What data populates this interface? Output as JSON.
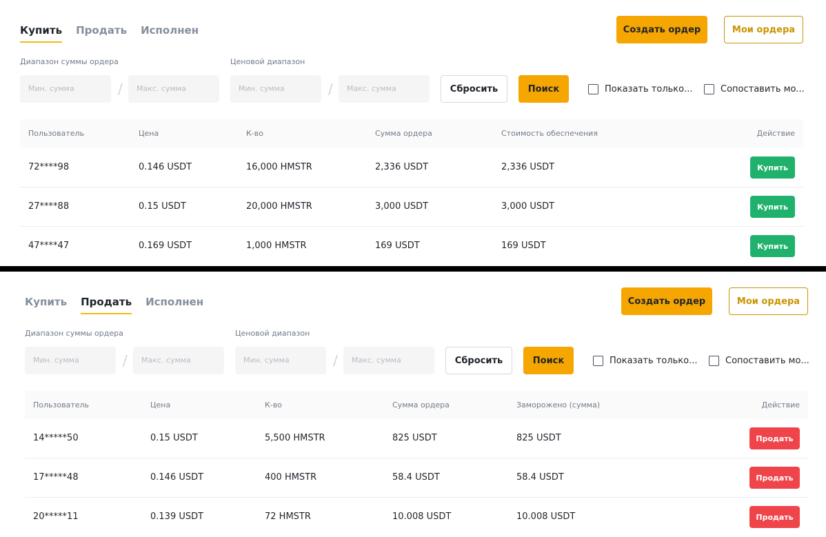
{
  "buy_panel": {
    "tabs": [
      {
        "label": "Купить",
        "active": true
      },
      {
        "label": "Продать",
        "active": false
      },
      {
        "label": "Исполнен",
        "active": false
      }
    ],
    "create_order_label": "Создать ордер",
    "my_orders_label": "Мои ордера",
    "amount_range_label": "Диапазон суммы ордера",
    "price_range_label": "Ценовой диапазон",
    "amount_min_placeholder": "Мин. сумма",
    "amount_max_placeholder": "Макс. сумма",
    "price_min_placeholder": "Мин. сумма",
    "price_max_placeholder": "Макс. сумма",
    "separator": "/",
    "reset_label": "Сбросить",
    "search_label": "Поиск",
    "checkbox_show_only": "Показать только...",
    "checkbox_match": "Сопоставить мо...",
    "columns": [
      "Пользователь",
      "Цена",
      "К-во",
      "Сумма ордера",
      "Стоимость обеспечения",
      "Действие"
    ],
    "rows": [
      {
        "user": "72****98",
        "price": "0.146 USDT",
        "qty": "16,000 HMSTR",
        "amount": "2,336 USDT",
        "collateral": "2,336 USDT",
        "action": "Купить"
      },
      {
        "user": "27****88",
        "price": "0.15 USDT",
        "qty": "20,000 HMSTR",
        "amount": "3,000 USDT",
        "collateral": "3,000 USDT",
        "action": "Купить"
      },
      {
        "user": "47****47",
        "price": "0.169 USDT",
        "qty": "1,000 HMSTR",
        "amount": "169 USDT",
        "collateral": "169 USDT",
        "action": "Купить"
      }
    ],
    "action_color": "#20b26c"
  },
  "sell_panel": {
    "tabs": [
      {
        "label": "Купить",
        "active": false
      },
      {
        "label": "Продать",
        "active": true
      },
      {
        "label": "Исполнен",
        "active": false
      }
    ],
    "create_order_label": "Создать ордер",
    "my_orders_label": "Мои ордера",
    "amount_range_label": "Диапазон суммы ордера",
    "price_range_label": "Ценовой диапазон",
    "amount_min_placeholder": "Мин. сумма",
    "amount_max_placeholder": "Макс. сумма",
    "price_min_placeholder": "Мин. сумма",
    "price_max_placeholder": "Макс. сумма",
    "separator": "/",
    "reset_label": "Сбросить",
    "search_label": "Поиск",
    "checkbox_show_only": "Показать только...",
    "checkbox_match": "Сопоставить мо...",
    "columns": [
      "Пользователь",
      "Цена",
      "К-во",
      "Сумма ордера",
      "Заморожено (сумма)",
      "Действие"
    ],
    "rows": [
      {
        "user": "14*****50",
        "price": "0.15 USDT",
        "qty": "5,500 HMSTR",
        "amount": "825 USDT",
        "collateral": "825 USDT",
        "action": "Продать"
      },
      {
        "user": "17*****48",
        "price": "0.146 USDT",
        "qty": "400 HMSTR",
        "amount": "58.4 USDT",
        "collateral": "58.4 USDT",
        "action": "Продать"
      },
      {
        "user": "20*****11",
        "price": "0.139 USDT",
        "qty": "72 HMSTR",
        "amount": "10.008 USDT",
        "collateral": "10.008 USDT",
        "action": "Продать"
      }
    ],
    "action_color": "#ef454a"
  },
  "colors": {
    "accent": "#f6a600",
    "accent_outline": "#c99400",
    "buy": "#20b26c",
    "sell": "#ef454a"
  }
}
